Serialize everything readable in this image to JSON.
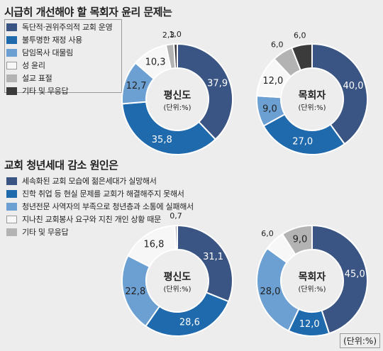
{
  "colors": [
    "#3a5584",
    "#1f69ad",
    "#6da0d2",
    "#f7f7f7",
    "#b3b3b3",
    "#3b3b3b"
  ],
  "unit_label": "(단위:%)",
  "chart_data": [
    {
      "type": "pie",
      "title": "시급히 개선해야 할 목회자 윤리 문제는",
      "legend": [
        "독단적·권위주의적 교회 운영",
        "불투명한 재정 사용",
        "담임목사 대물림",
        "성 윤리",
        "설교 표절",
        "기타 및 무응답"
      ],
      "donuts": [
        {
          "center_label": "평신도",
          "unit": "(단위:%)",
          "values": [
            37.9,
            35.8,
            12.7,
            10.3,
            2.3,
            1.0
          ],
          "labels": [
            "37,9",
            "35,8",
            "12,7",
            "10,3",
            "2,3",
            "1,0"
          ]
        },
        {
          "center_label": "목회자",
          "unit": "(단위:%)",
          "values": [
            40.0,
            27.0,
            9.0,
            12.0,
            6.0,
            6.0
          ],
          "labels": [
            "40,0",
            "27,0",
            "9,0",
            "12,0",
            "6,0",
            "6,0"
          ]
        }
      ]
    },
    {
      "type": "pie",
      "title": "교회 청년세대 감소 원인은",
      "legend": [
        "세속화된 교회 모습에 젊은세대가 실망해서",
        "진학 취업 등 현실 문제를 교회가 해결해주지 못해서",
        "청년전문 사역자의 부족으로 청년층과 소통에 실패해서",
        "지나친 교회봉사 요구와 지친 개인 상황 때문",
        "기타 및 무응답"
      ],
      "donuts": [
        {
          "center_label": "평신도",
          "unit": "(단위:%)",
          "values": [
            31.1,
            28.6,
            22.8,
            16.8,
            0.7
          ],
          "labels": [
            "31,1",
            "28,6",
            "22,8",
            "16,8",
            "0,7"
          ]
        },
        {
          "center_label": "목회자",
          "unit": "(단위:%)",
          "values": [
            45.0,
            12.0,
            28.0,
            6.0,
            9.0
          ],
          "labels": [
            "45,0",
            "12,0",
            "28,0",
            "6,0",
            "9,0"
          ]
        }
      ]
    }
  ]
}
